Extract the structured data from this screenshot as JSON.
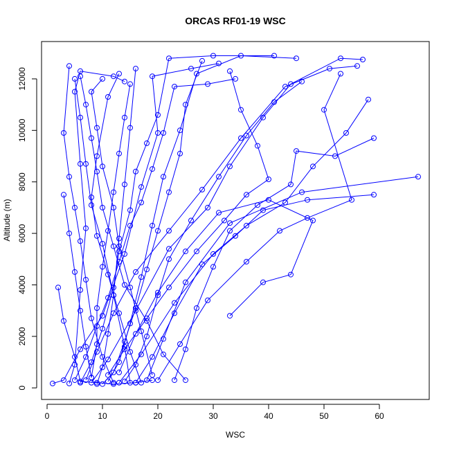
{
  "chart_data": {
    "type": "line",
    "title": "ORCAS RF01-19 WSC",
    "xlabel": "WSC",
    "ylabel": "Altitude (m)",
    "xlim": [
      -1,
      69
    ],
    "ylim": [
      -450,
      13450
    ],
    "x_ticks": [
      0,
      10,
      20,
      30,
      40,
      50,
      60
    ],
    "y_ticks": [
      0,
      2000,
      4000,
      6000,
      8000,
      10000,
      12000
    ],
    "x_tick_labels": [
      "0",
      "10",
      "20",
      "30",
      "40",
      "50",
      "60"
    ],
    "y_tick_labels": [
      "0",
      "2000",
      "4000",
      "6000",
      "8000",
      "10000",
      "12000"
    ],
    "grid": false,
    "legend": "none",
    "marker": "open-circle",
    "color": "#0000ff",
    "series": [
      {
        "values": [
          [
            1,
            170
          ],
          [
            3,
            300
          ],
          [
            6,
            1500
          ],
          [
            10,
            2800
          ],
          [
            14,
            5200
          ],
          [
            17,
            7800
          ],
          [
            20,
            9900
          ],
          [
            19,
            12100
          ],
          [
            26,
            12400
          ],
          [
            31,
            12600
          ]
        ]
      },
      {
        "values": [
          [
            4,
            170
          ],
          [
            5,
            900
          ],
          [
            6,
            3800
          ],
          [
            7,
            6200
          ],
          [
            6,
            8700
          ],
          [
            5,
            11500
          ],
          [
            6,
            12300
          ],
          [
            12,
            12100
          ],
          [
            14,
            11900
          ]
        ]
      },
      {
        "values": [
          [
            8,
            200
          ],
          [
            11,
            1100
          ],
          [
            16,
            3000
          ],
          [
            22,
            5400
          ],
          [
            29,
            7000
          ],
          [
            33,
            8600
          ],
          [
            39,
            10500
          ],
          [
            44,
            11800
          ],
          [
            53,
            12800
          ],
          [
            57,
            12750
          ]
        ]
      },
      {
        "values": [
          [
            13,
            200
          ],
          [
            17,
            1300
          ],
          [
            23,
            3300
          ],
          [
            30,
            5200
          ],
          [
            36,
            6300
          ],
          [
            43,
            7200
          ],
          [
            48,
            8600
          ],
          [
            54,
            9900
          ],
          [
            58,
            11200
          ]
        ]
      },
      {
        "values": [
          [
            15,
            200
          ],
          [
            14,
            1600
          ],
          [
            12,
            3600
          ],
          [
            10,
            5600
          ],
          [
            8,
            7100
          ],
          [
            7,
            8700
          ],
          [
            6,
            10500
          ],
          [
            5,
            12000
          ]
        ]
      },
      {
        "values": [
          [
            18,
            300
          ],
          [
            21,
            1900
          ],
          [
            25,
            4100
          ],
          [
            33,
            6400
          ],
          [
            46,
            7600
          ],
          [
            67,
            8200
          ]
        ]
      },
      {
        "values": [
          [
            9,
            150
          ],
          [
            10,
            800
          ],
          [
            11,
            2100
          ],
          [
            12,
            3600
          ],
          [
            13,
            5800
          ],
          [
            14,
            7900
          ],
          [
            15,
            10100
          ],
          [
            16,
            12400
          ]
        ]
      },
      {
        "values": [
          [
            11,
            250
          ],
          [
            13,
            1000
          ],
          [
            15,
            2500
          ],
          [
            17,
            4300
          ],
          [
            19,
            6300
          ],
          [
            21,
            8200
          ],
          [
            24,
            10000
          ],
          [
            27,
            12200
          ],
          [
            35,
            12900
          ],
          [
            45,
            12800
          ]
        ]
      },
      {
        "values": [
          [
            2,
            3900
          ],
          [
            3,
            2600
          ],
          [
            5,
            1200
          ],
          [
            6,
            250
          ],
          [
            9,
            200
          ],
          [
            12,
            150
          ],
          [
            16,
            200
          ],
          [
            19,
            300
          ]
        ]
      },
      {
        "values": [
          [
            7,
            300
          ],
          [
            9,
            1400
          ],
          [
            12,
            2900
          ],
          [
            16,
            4500
          ],
          [
            22,
            6100
          ],
          [
            28,
            7700
          ],
          [
            35,
            9700
          ],
          [
            43,
            11700
          ],
          [
            51,
            12400
          ],
          [
            56,
            12500
          ]
        ]
      },
      {
        "values": [
          [
            10,
            150
          ],
          [
            12,
            600
          ],
          [
            14,
            1800
          ],
          [
            16,
            3100
          ],
          [
            18,
            4600
          ],
          [
            20,
            6100
          ],
          [
            22,
            7600
          ],
          [
            24,
            9100
          ],
          [
            25,
            11000
          ],
          [
            28,
            12700
          ]
        ]
      },
      {
        "values": [
          [
            16,
            200
          ],
          [
            19,
            1200
          ],
          [
            23,
            2900
          ],
          [
            28,
            4800
          ],
          [
            34,
            5900
          ],
          [
            39,
            6900
          ],
          [
            47,
            7300
          ],
          [
            59,
            7500
          ]
        ]
      },
      {
        "values": [
          [
            3,
            7500
          ],
          [
            4,
            6000
          ],
          [
            5,
            4500
          ],
          [
            6,
            3000
          ],
          [
            7,
            1600
          ],
          [
            8,
            400
          ]
        ]
      },
      {
        "values": [
          [
            12,
            200
          ],
          [
            10,
            1200
          ],
          [
            8,
            2700
          ],
          [
            7,
            4200
          ],
          [
            6,
            5700
          ],
          [
            5,
            7000
          ],
          [
            4,
            8200
          ],
          [
            3,
            9900
          ],
          [
            4,
            12500
          ]
        ]
      },
      {
        "values": [
          [
            14,
            250
          ],
          [
            16,
            900
          ],
          [
            18,
            2000
          ],
          [
            20,
            3600
          ],
          [
            22,
            5000
          ],
          [
            26,
            6500
          ],
          [
            31,
            8200
          ],
          [
            36,
            9800
          ],
          [
            41,
            11100
          ],
          [
            46,
            11900
          ]
        ]
      },
      {
        "values": [
          [
            20,
            300
          ],
          [
            24,
            1700
          ],
          [
            29,
            3400
          ],
          [
            36,
            4900
          ],
          [
            42,
            6100
          ],
          [
            47,
            6600
          ],
          [
            55,
            7300
          ],
          [
            50,
            10800
          ],
          [
            53,
            12200
          ]
        ]
      },
      {
        "values": [
          [
            6,
            200
          ],
          [
            8,
            1000
          ],
          [
            10,
            2300
          ],
          [
            12,
            3900
          ],
          [
            13,
            5300
          ],
          [
            15,
            6900
          ],
          [
            16,
            8400
          ],
          [
            18,
            9500
          ],
          [
            20,
            10600
          ],
          [
            22,
            12800
          ],
          [
            30,
            12900
          ],
          [
            41,
            12900
          ]
        ]
      },
      {
        "values": [
          [
            8,
            400
          ],
          [
            9,
            1700
          ],
          [
            9,
            3100
          ],
          [
            10,
            4700
          ],
          [
            11,
            6100
          ],
          [
            12,
            7600
          ],
          [
            13,
            9100
          ],
          [
            14,
            10500
          ],
          [
            15,
            11800
          ]
        ]
      },
      {
        "values": [
          [
            23,
            300
          ],
          [
            25,
            1500
          ],
          [
            27,
            3100
          ],
          [
            30,
            4700
          ],
          [
            33,
            6100
          ],
          [
            38,
            7100
          ],
          [
            44,
            7900
          ],
          [
            45,
            9200
          ],
          [
            52,
            9000
          ],
          [
            59,
            9700
          ]
        ]
      },
      {
        "values": [
          [
            5,
            300
          ],
          [
            7,
            1200
          ],
          [
            9,
            2400
          ],
          [
            11,
            3500
          ],
          [
            13,
            4900
          ],
          [
            15,
            6300
          ],
          [
            17,
            7200
          ],
          [
            19,
            8500
          ],
          [
            21,
            9900
          ],
          [
            23,
            11700
          ],
          [
            29,
            11800
          ],
          [
            34,
            12000
          ]
        ]
      },
      {
        "values": [
          [
            17,
            200
          ],
          [
            15,
            1400
          ],
          [
            13,
            2900
          ],
          [
            11,
            4400
          ],
          [
            9,
            5900
          ],
          [
            8,
            7400
          ],
          [
            9,
            9000
          ],
          [
            11,
            11300
          ],
          [
            13,
            12200
          ]
        ]
      },
      {
        "values": [
          [
            19,
            500
          ],
          [
            17,
            2200
          ],
          [
            15,
            3900
          ],
          [
            13,
            5500
          ],
          [
            12,
            7000
          ],
          [
            10,
            8600
          ],
          [
            9,
            10100
          ],
          [
            8,
            11500
          ],
          [
            10,
            12000
          ]
        ]
      },
      {
        "values": [
          [
            11,
            500
          ],
          [
            14,
            1500
          ],
          [
            18,
            2700
          ],
          [
            22,
            3900
          ],
          [
            27,
            5300
          ],
          [
            32,
            6500
          ],
          [
            36,
            7500
          ],
          [
            40,
            8100
          ],
          [
            38,
            9400
          ],
          [
            35,
            10800
          ],
          [
            33,
            12300
          ]
        ]
      },
      {
        "values": [
          [
            25,
            300
          ],
          [
            21,
            1300
          ],
          [
            18,
            2600
          ],
          [
            14,
            4000
          ],
          [
            12,
            5500
          ],
          [
            10,
            7000
          ],
          [
            9,
            8400
          ],
          [
            8,
            9700
          ],
          [
            7,
            11000
          ],
          [
            6,
            12100
          ]
        ]
      },
      {
        "values": [
          [
            13,
            600
          ],
          [
            16,
            2100
          ],
          [
            20,
            3700
          ],
          [
            25,
            5300
          ],
          [
            31,
            6800
          ],
          [
            40,
            7300
          ],
          [
            48,
            6500
          ],
          [
            44,
            4400
          ],
          [
            39,
            4100
          ],
          [
            33,
            2800
          ]
        ]
      }
    ]
  }
}
